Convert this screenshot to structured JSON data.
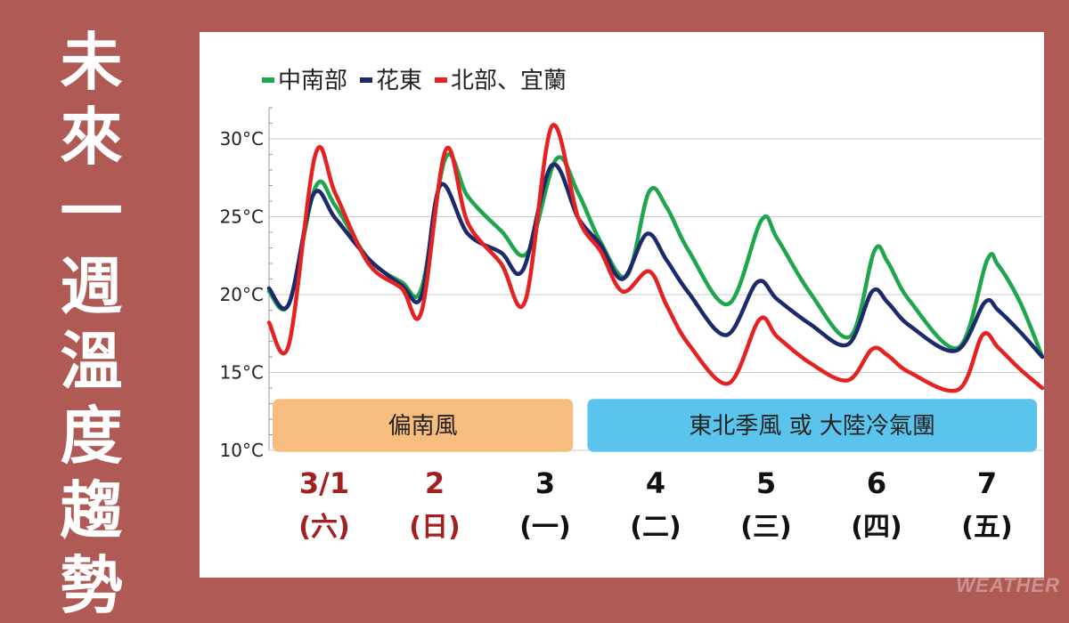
{
  "title": "未來一週溫度趨勢",
  "watermark": "WEATHER",
  "chart_data": {
    "type": "line",
    "ylim": [
      10,
      32
    ],
    "y_ticks": [
      10,
      15,
      20,
      25,
      30
    ],
    "y_tick_labels": [
      "10°C",
      "15°C",
      "20°C",
      "25°C",
      "30°C"
    ],
    "day_labels": [
      {
        "date": "3/1",
        "weekday": "(六)",
        "color": "#a32020"
      },
      {
        "date": "2",
        "weekday": "(日)",
        "color": "#a32020"
      },
      {
        "date": "3",
        "weekday": "(一)",
        "color": "#111111"
      },
      {
        "date": "4",
        "weekday": "(二)",
        "color": "#111111"
      },
      {
        "date": "5",
        "weekday": "(三)",
        "color": "#111111"
      },
      {
        "date": "6",
        "weekday": "(四)",
        "color": "#111111"
      },
      {
        "date": "7",
        "weekday": "(五)",
        "color": "#111111"
      }
    ],
    "day_positions": [
      0.5,
      1.5,
      2.5,
      3.5,
      4.5,
      5.5,
      6.5
    ],
    "x_range": [
      0,
      7
    ],
    "wind_bands": [
      {
        "label": "偏南風",
        "start": 0,
        "end": 2.8,
        "color": "#f7bd7f"
      },
      {
        "label": "東北季風 或 大陸冷氣團",
        "start": 2.85,
        "end": 7,
        "color": "#5ac4ec"
      }
    ],
    "series": [
      {
        "name": "中南部",
        "color": "#1fa64d",
        "points": [
          [
            0,
            20.2
          ],
          [
            0.18,
            19.4
          ],
          [
            0.42,
            26.9
          ],
          [
            0.6,
            25.7
          ],
          [
            0.9,
            22.3
          ],
          [
            1.2,
            20.8
          ],
          [
            1.38,
            20.4
          ],
          [
            1.6,
            28.8
          ],
          [
            1.8,
            26.3
          ],
          [
            2.1,
            24.1
          ],
          [
            2.34,
            22.7
          ],
          [
            2.6,
            28.7
          ],
          [
            2.8,
            26.5
          ],
          [
            3.0,
            23.4
          ],
          [
            3.24,
            21.2
          ],
          [
            3.44,
            26.6
          ],
          [
            3.6,
            25.6
          ],
          [
            3.8,
            22.8
          ],
          [
            4.16,
            19.4
          ],
          [
            4.46,
            24.8
          ],
          [
            4.6,
            23.6
          ],
          [
            4.9,
            20.1
          ],
          [
            5.26,
            17.3
          ],
          [
            5.48,
            22.8
          ],
          [
            5.6,
            22.1
          ],
          [
            5.8,
            19.6
          ],
          [
            6.24,
            16.6
          ],
          [
            6.5,
            22.2
          ],
          [
            6.6,
            21.9
          ],
          [
            6.8,
            19.5
          ],
          [
            7,
            16.0
          ]
        ]
      },
      {
        "name": "花東",
        "color": "#1c2a6b",
        "points": [
          [
            0,
            20.4
          ],
          [
            0.18,
            19.4
          ],
          [
            0.4,
            26.4
          ],
          [
            0.6,
            24.9
          ],
          [
            0.9,
            22.3
          ],
          [
            1.2,
            20.6
          ],
          [
            1.38,
            19.9
          ],
          [
            1.55,
            27.0
          ],
          [
            1.8,
            23.9
          ],
          [
            2.1,
            22.7
          ],
          [
            2.3,
            21.6
          ],
          [
            2.56,
            28.3
          ],
          [
            2.8,
            24.9
          ],
          [
            3.0,
            23.2
          ],
          [
            3.2,
            21.0
          ],
          [
            3.42,
            23.9
          ],
          [
            3.6,
            22.2
          ],
          [
            3.8,
            20.1
          ],
          [
            4.14,
            17.4
          ],
          [
            4.42,
            20.8
          ],
          [
            4.6,
            19.7
          ],
          [
            4.9,
            18.1
          ],
          [
            5.24,
            16.8
          ],
          [
            5.46,
            20.2
          ],
          [
            5.6,
            19.5
          ],
          [
            5.8,
            18.0
          ],
          [
            6.22,
            16.4
          ],
          [
            6.48,
            19.5
          ],
          [
            6.6,
            19.0
          ],
          [
            6.8,
            17.6
          ],
          [
            7,
            16.0
          ]
        ]
      },
      {
        "name": "北部、宜蘭",
        "color": "#e52222",
        "points": [
          [
            0,
            18.2
          ],
          [
            0.18,
            16.8
          ],
          [
            0.42,
            29.0
          ],
          [
            0.6,
            26.5
          ],
          [
            0.9,
            22.0
          ],
          [
            1.2,
            20.4
          ],
          [
            1.38,
            18.9
          ],
          [
            1.6,
            29.3
          ],
          [
            1.8,
            24.6
          ],
          [
            2.1,
            22.0
          ],
          [
            2.32,
            19.6
          ],
          [
            2.56,
            30.8
          ],
          [
            2.8,
            24.9
          ],
          [
            3.0,
            22.8
          ],
          [
            3.2,
            20.2
          ],
          [
            3.44,
            21.5
          ],
          [
            3.6,
            19.3
          ],
          [
            3.8,
            16.8
          ],
          [
            4.16,
            14.3
          ],
          [
            4.44,
            18.4
          ],
          [
            4.6,
            17.3
          ],
          [
            4.9,
            15.6
          ],
          [
            5.24,
            14.5
          ],
          [
            5.46,
            16.5
          ],
          [
            5.6,
            16.1
          ],
          [
            5.8,
            15.0
          ],
          [
            6.24,
            13.9
          ],
          [
            6.46,
            17.4
          ],
          [
            6.6,
            16.6
          ],
          [
            6.8,
            15.2
          ],
          [
            7,
            14.0
          ]
        ]
      }
    ]
  }
}
